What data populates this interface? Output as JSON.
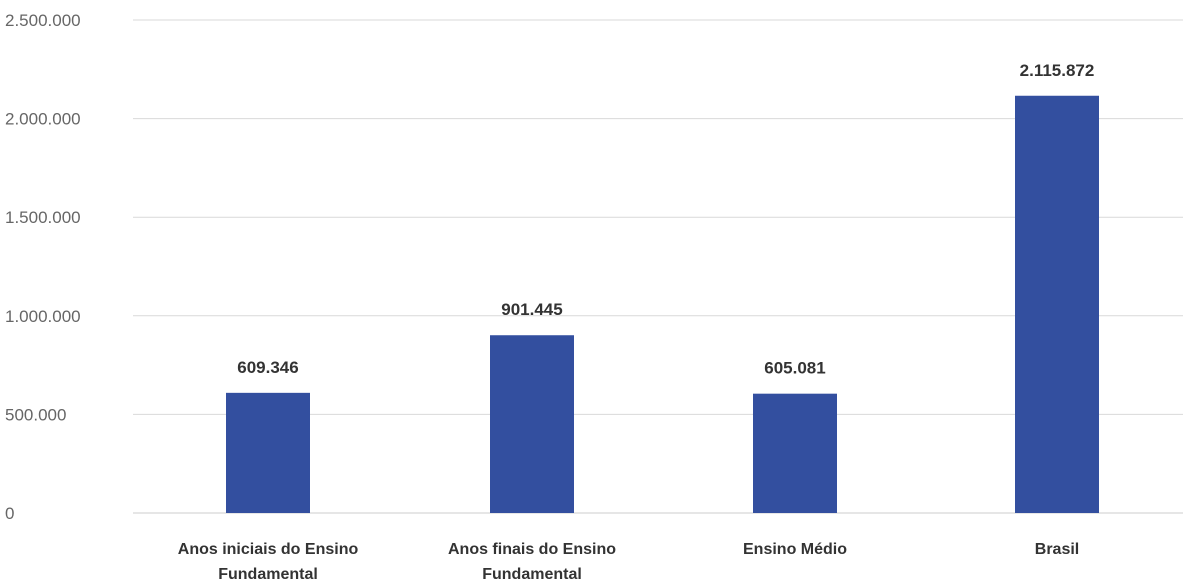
{
  "chart_data": {
    "type": "bar",
    "categories": [
      [
        "Anos iniciais do Ensino",
        "Fundamental"
      ],
      [
        "Anos finais do Ensino",
        "Fundamental"
      ],
      [
        "Ensino Médio"
      ],
      [
        "Brasil"
      ]
    ],
    "values": [
      609346,
      901445,
      605081,
      2115872
    ],
    "value_labels": [
      "609.346",
      "901.445",
      "605.081",
      "2.115.872"
    ],
    "yticks": [
      0,
      500000,
      1000000,
      1500000,
      2000000,
      2500000
    ],
    "ytick_labels": [
      "0",
      "500.000",
      "1.000.000",
      "1.500.000",
      "2.000.000",
      "2.500.000"
    ],
    "ylim": [
      0,
      2500000
    ],
    "grid": true,
    "legend": "none",
    "bar_color": "#334f9f"
  }
}
